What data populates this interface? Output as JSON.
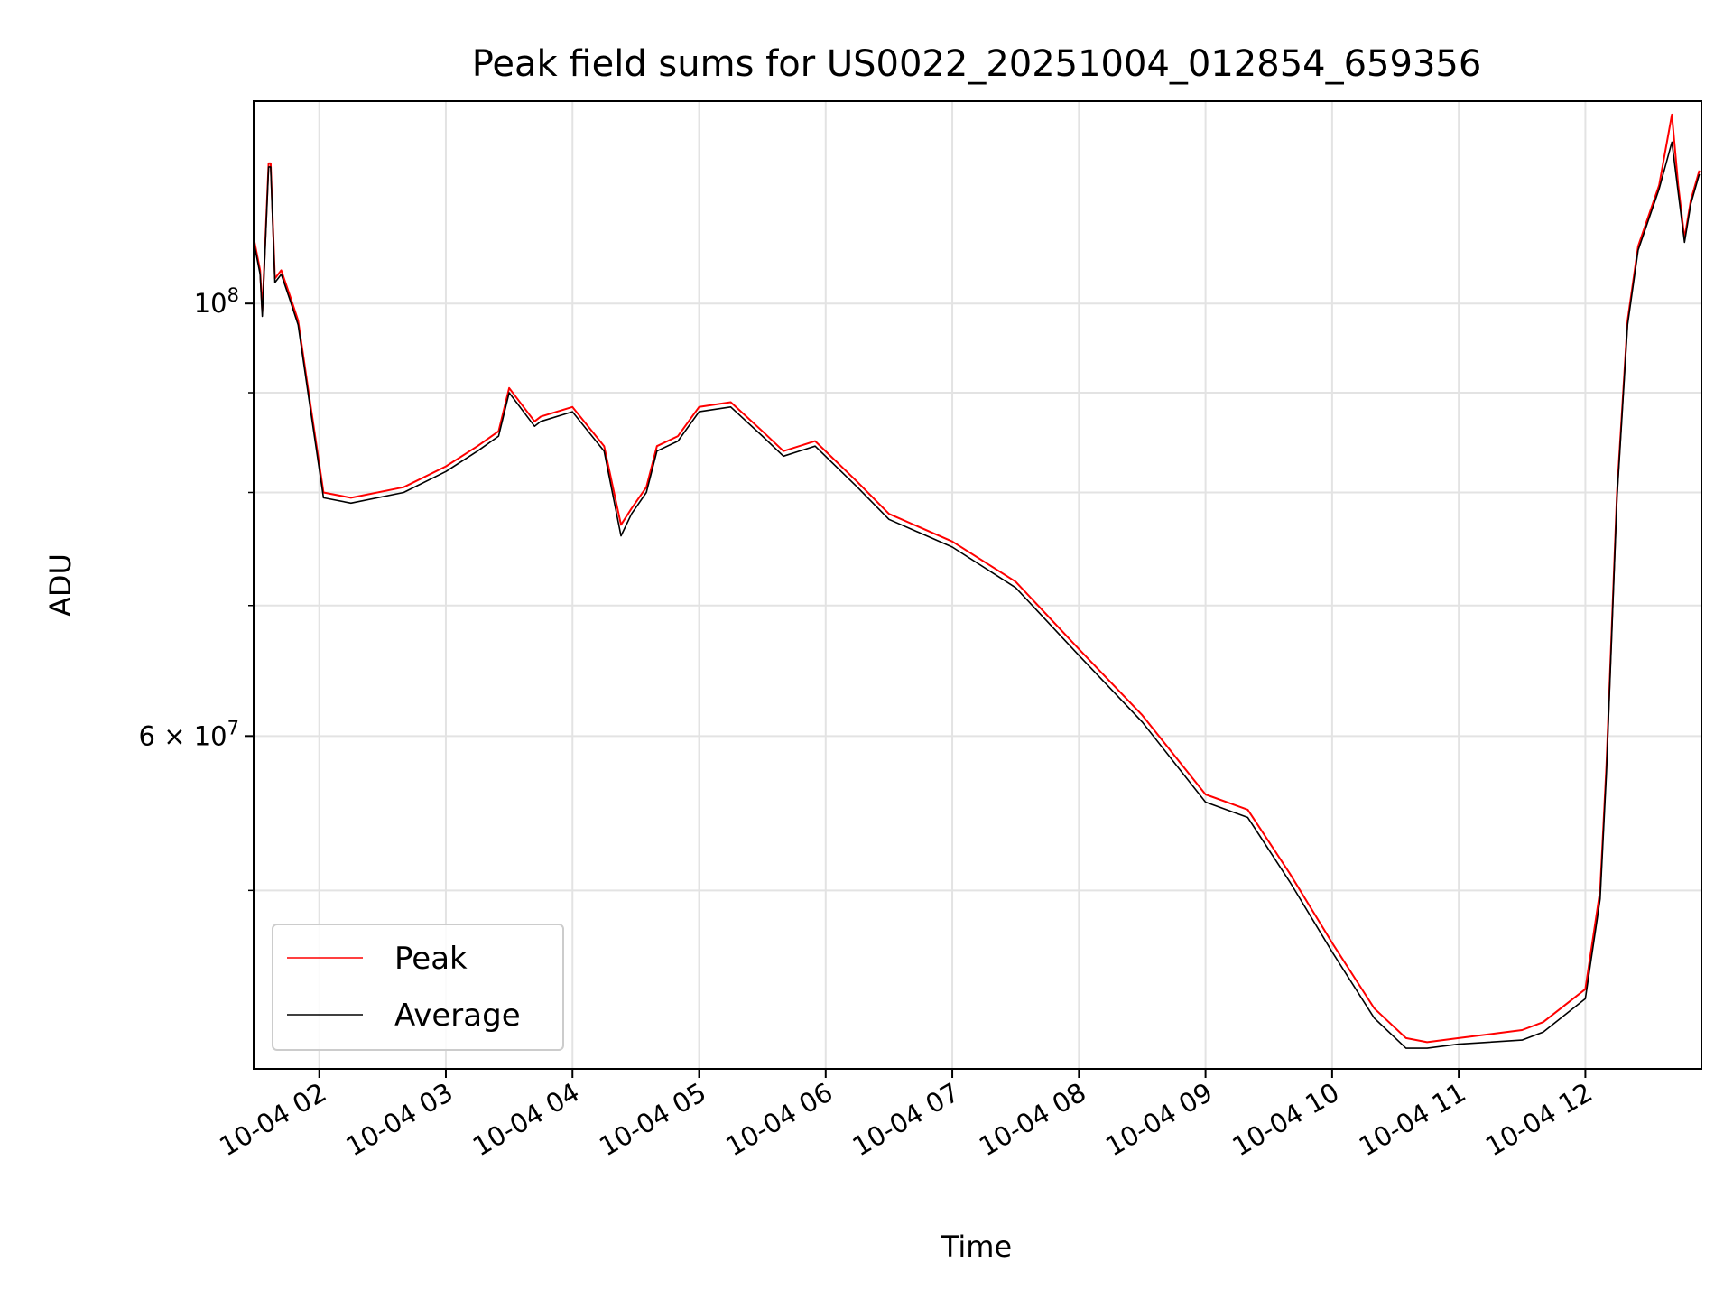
{
  "chart_data": {
    "type": "line",
    "title": "Peak field sums for US0022_20251004_012854_659356",
    "xlabel": "Time",
    "ylabel": "ADU",
    "x_type": "datetime",
    "xlim": [
      "2025-10-04T01:28:54",
      "2025-10-04T12:55:00"
    ],
    "ylim": [
      40500000,
      127000000
    ],
    "yscale": "log",
    "grid": true,
    "legend_position": "lower-left",
    "x_ticks": [
      {
        "value": "2025-10-04T02:00",
        "label": "10-04 02"
      },
      {
        "value": "2025-10-04T03:00",
        "label": "10-04 03"
      },
      {
        "value": "2025-10-04T04:00",
        "label": "10-04 04"
      },
      {
        "value": "2025-10-04T05:00",
        "label": "10-04 05"
      },
      {
        "value": "2025-10-04T06:00",
        "label": "10-04 06"
      },
      {
        "value": "2025-10-04T07:00",
        "label": "10-04 07"
      },
      {
        "value": "2025-10-04T08:00",
        "label": "10-04 08"
      },
      {
        "value": "2025-10-04T09:00",
        "label": "10-04 09"
      },
      {
        "value": "2025-10-04T10:00",
        "label": "10-04 10"
      },
      {
        "value": "2025-10-04T11:00",
        "label": "10-04 11"
      },
      {
        "value": "2025-10-04T12:00",
        "label": "10-04 12"
      }
    ],
    "y_major_ticks": [
      {
        "value": 60000000,
        "mantissa": "6",
        "times": "×",
        "base": "10",
        "exp": "7"
      },
      {
        "value": 100000000,
        "mantissa": "",
        "times": "",
        "base": "10",
        "exp": "8"
      }
    ],
    "y_minor_ticks": [
      50000000,
      70000000,
      80000000,
      90000000
    ],
    "series": [
      {
        "name": "Peak",
        "color": "#ff0000",
        "x": [
          "2025-10-04T01:29",
          "2025-10-04T01:32",
          "2025-10-04T01:33",
          "2025-10-04T01:36",
          "2025-10-04T01:37",
          "2025-10-04T01:39",
          "2025-10-04T01:42",
          "2025-10-04T01:46",
          "2025-10-04T01:50",
          "2025-10-04T01:55",
          "2025-10-04T02:02",
          "2025-10-04T02:15",
          "2025-10-04T02:40",
          "2025-10-04T03:00",
          "2025-10-04T03:15",
          "2025-10-04T03:25",
          "2025-10-04T03:30",
          "2025-10-04T03:42",
          "2025-10-04T03:45",
          "2025-10-04T04:00",
          "2025-10-04T04:15",
          "2025-10-04T04:23",
          "2025-10-04T04:28",
          "2025-10-04T04:35",
          "2025-10-04T04:40",
          "2025-10-04T04:50",
          "2025-10-04T05:00",
          "2025-10-04T05:15",
          "2025-10-04T05:30",
          "2025-10-04T05:40",
          "2025-10-04T05:55",
          "2025-10-04T06:15",
          "2025-10-04T06:30",
          "2025-10-04T07:00",
          "2025-10-04T07:30",
          "2025-10-04T08:00",
          "2025-10-04T08:30",
          "2025-10-04T09:00",
          "2025-10-04T09:20",
          "2025-10-04T09:40",
          "2025-10-04T10:00",
          "2025-10-04T10:20",
          "2025-10-04T10:35",
          "2025-10-04T10:45",
          "2025-10-04T11:00",
          "2025-10-04T11:30",
          "2025-10-04T11:40",
          "2025-10-04T12:00",
          "2025-10-04T12:07",
          "2025-10-04T12:10",
          "2025-10-04T12:15",
          "2025-10-04T12:20",
          "2025-10-04T12:25",
          "2025-10-04T12:35",
          "2025-10-04T12:41",
          "2025-10-04T12:44",
          "2025-10-04T12:47",
          "2025-10-04T12:50",
          "2025-10-04T12:54"
        ],
        "y": [
          108000000,
          104000000,
          99000000,
          118000000,
          118000000,
          103000000,
          104000000,
          101000000,
          98000000,
          90000000,
          80000000,
          79500000,
          80500000,
          82500000,
          84500000,
          86000000,
          90500000,
          87000000,
          87500000,
          88500000,
          84500000,
          77000000,
          78500000,
          80500000,
          84500000,
          85500000,
          88500000,
          89000000,
          86000000,
          84000000,
          85000000,
          81000000,
          78000000,
          75500000,
          72000000,
          66500000,
          61500000,
          56000000,
          55000000,
          51000000,
          47000000,
          43500000,
          42000000,
          41800000,
          42000000,
          42400000,
          42800000,
          44500000,
          50000000,
          58000000,
          80000000,
          98000000,
          107000000,
          115000000,
          125000000,
          115000000,
          108000000,
          113000000,
          117000000
        ]
      },
      {
        "name": "Average",
        "color": "#000000",
        "x": [
          "2025-10-04T01:29",
          "2025-10-04T01:32",
          "2025-10-04T01:33",
          "2025-10-04T01:36",
          "2025-10-04T01:37",
          "2025-10-04T01:39",
          "2025-10-04T01:42",
          "2025-10-04T01:46",
          "2025-10-04T01:50",
          "2025-10-04T01:55",
          "2025-10-04T02:02",
          "2025-10-04T02:15",
          "2025-10-04T02:40",
          "2025-10-04T03:00",
          "2025-10-04T03:15",
          "2025-10-04T03:25",
          "2025-10-04T03:30",
          "2025-10-04T03:42",
          "2025-10-04T03:45",
          "2025-10-04T04:00",
          "2025-10-04T04:15",
          "2025-10-04T04:23",
          "2025-10-04T04:28",
          "2025-10-04T04:35",
          "2025-10-04T04:40",
          "2025-10-04T04:50",
          "2025-10-04T05:00",
          "2025-10-04T05:15",
          "2025-10-04T05:30",
          "2025-10-04T05:40",
          "2025-10-04T05:55",
          "2025-10-04T06:15",
          "2025-10-04T06:30",
          "2025-10-04T07:00",
          "2025-10-04T07:30",
          "2025-10-04T08:00",
          "2025-10-04T08:30",
          "2025-10-04T09:00",
          "2025-10-04T09:20",
          "2025-10-04T09:40",
          "2025-10-04T10:00",
          "2025-10-04T10:20",
          "2025-10-04T10:35",
          "2025-10-04T10:45",
          "2025-10-04T11:00",
          "2025-10-04T11:30",
          "2025-10-04T11:40",
          "2025-10-04T12:00",
          "2025-10-04T12:07",
          "2025-10-04T12:10",
          "2025-10-04T12:15",
          "2025-10-04T12:20",
          "2025-10-04T12:25",
          "2025-10-04T12:35",
          "2025-10-04T12:41",
          "2025-10-04T12:44",
          "2025-10-04T12:47",
          "2025-10-04T12:50",
          "2025-10-04T12:54"
        ],
        "y": [
          107500000,
          103500000,
          98500000,
          117500000,
          117500000,
          102500000,
          103500000,
          100500000,
          97500000,
          89500000,
          79500000,
          79000000,
          80000000,
          82000000,
          84000000,
          85500000,
          90000000,
          86500000,
          87000000,
          88000000,
          84000000,
          76000000,
          78000000,
          80000000,
          84000000,
          85000000,
          88000000,
          88500000,
          85500000,
          83500000,
          84500000,
          80500000,
          77500000,
          75000000,
          71500000,
          66000000,
          61000000,
          55500000,
          54500000,
          50500000,
          46500000,
          43000000,
          41500000,
          41500000,
          41700000,
          41900000,
          42300000,
          44000000,
          49500000,
          57500000,
          79500000,
          97500000,
          106500000,
          114500000,
          121000000,
          114000000,
          107500000,
          112500000,
          116500000
        ]
      }
    ]
  }
}
